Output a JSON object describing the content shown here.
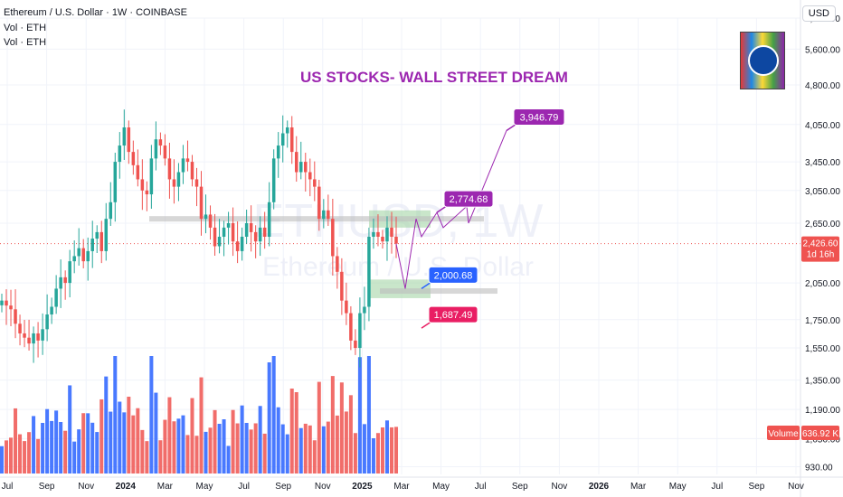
{
  "header": {
    "title": "Ethereum / U.S. Dollar · 1W · COINBASE",
    "vol_1": "Vol · ETH",
    "vol_2": "Vol · ETH",
    "currency_button": "USD",
    "headline": "US STOCKS- WALL STREET DREAM",
    "watermark_symbol": "ETHUSD, 1W",
    "watermark_name": "Ethereum / U.S. Dollar"
  },
  "chart_data": {
    "type": "candlestick",
    "y_scale": "log",
    "ylim": [
      900,
      6400
    ],
    "y_ticks": [
      "930.00",
      "1,050.00",
      "1,190.00",
      "1,350.00",
      "1,550.00",
      "1,750.00",
      "2,050.00",
      "2,650.00",
      "3,050.00",
      "3,450.00",
      "4,050.00",
      "4,800.00",
      "5,600.00",
      "6,400.00"
    ],
    "x_ticks": [
      "Jul",
      "Sep",
      "Nov",
      "2024",
      "Mar",
      "May",
      "Jul",
      "Sep",
      "Nov",
      "2025",
      "Mar",
      "May",
      "Jul",
      "Sep",
      "Nov",
      "2026",
      "Mar",
      "May",
      "Jul",
      "Sep",
      "Nov"
    ],
    "x_range": [
      "2023-07",
      "2026-11"
    ],
    "weekly_close_path": [
      1900,
      1860,
      1830,
      1720,
      1650,
      1620,
      1580,
      1650,
      1600,
      1680,
      1790,
      1850,
      2000,
      2100,
      2050,
      2250,
      2300,
      2380,
      2250,
      2350,
      2480,
      2550,
      2350,
      2700,
      2900,
      3450,
      3700,
      4000,
      3600,
      3400,
      3200,
      3050,
      3000,
      3500,
      3800,
      3700,
      3500,
      3200,
      3100,
      3300,
      3500,
      3450,
      3200,
      3100,
      2700,
      2750,
      2600,
      2400,
      2500,
      2600,
      2650,
      2450,
      2350,
      2500,
      2650,
      2550,
      2450,
      2600,
      2500,
      2900,
      3500,
      3700,
      3900,
      4000,
      3600,
      3300,
      3450,
      3300,
      3200,
      3100,
      2700,
      2800,
      2700,
      2300,
      2150,
      1900,
      1800,
      1600,
      1550,
      1800,
      1850,
      2500,
      2550,
      2500,
      2450,
      2600,
      2500,
      2426.6
    ],
    "current_price": "2,426.60",
    "current_price_timer": "1d 16h",
    "volume_label": "Volume",
    "volume_value": "636.92 K",
    "zones": [
      {
        "name": "resistance-zone",
        "price_low": 2600,
        "price_high": 2800
      },
      {
        "name": "support-zone",
        "price_low": 1920,
        "price_high": 2080
      }
    ],
    "horizontal_level": 2700,
    "annotations": [
      {
        "text": "3,946.79",
        "price": 3946.79,
        "color": "#9c27b0"
      },
      {
        "text": "2,774.68",
        "price": 2774.68,
        "color": "#9c27b0"
      },
      {
        "text": "2,000.68",
        "price": 2000.68,
        "color": "#2962ff"
      },
      {
        "text": "1,687.49",
        "price": 1687.49,
        "color": "#e91e63"
      }
    ],
    "colors": {
      "up": "#26a69a",
      "down": "#ef5350",
      "vol_up": "#2962ff",
      "vol_down": "#ef5350",
      "projection": "#9c27b0"
    }
  }
}
